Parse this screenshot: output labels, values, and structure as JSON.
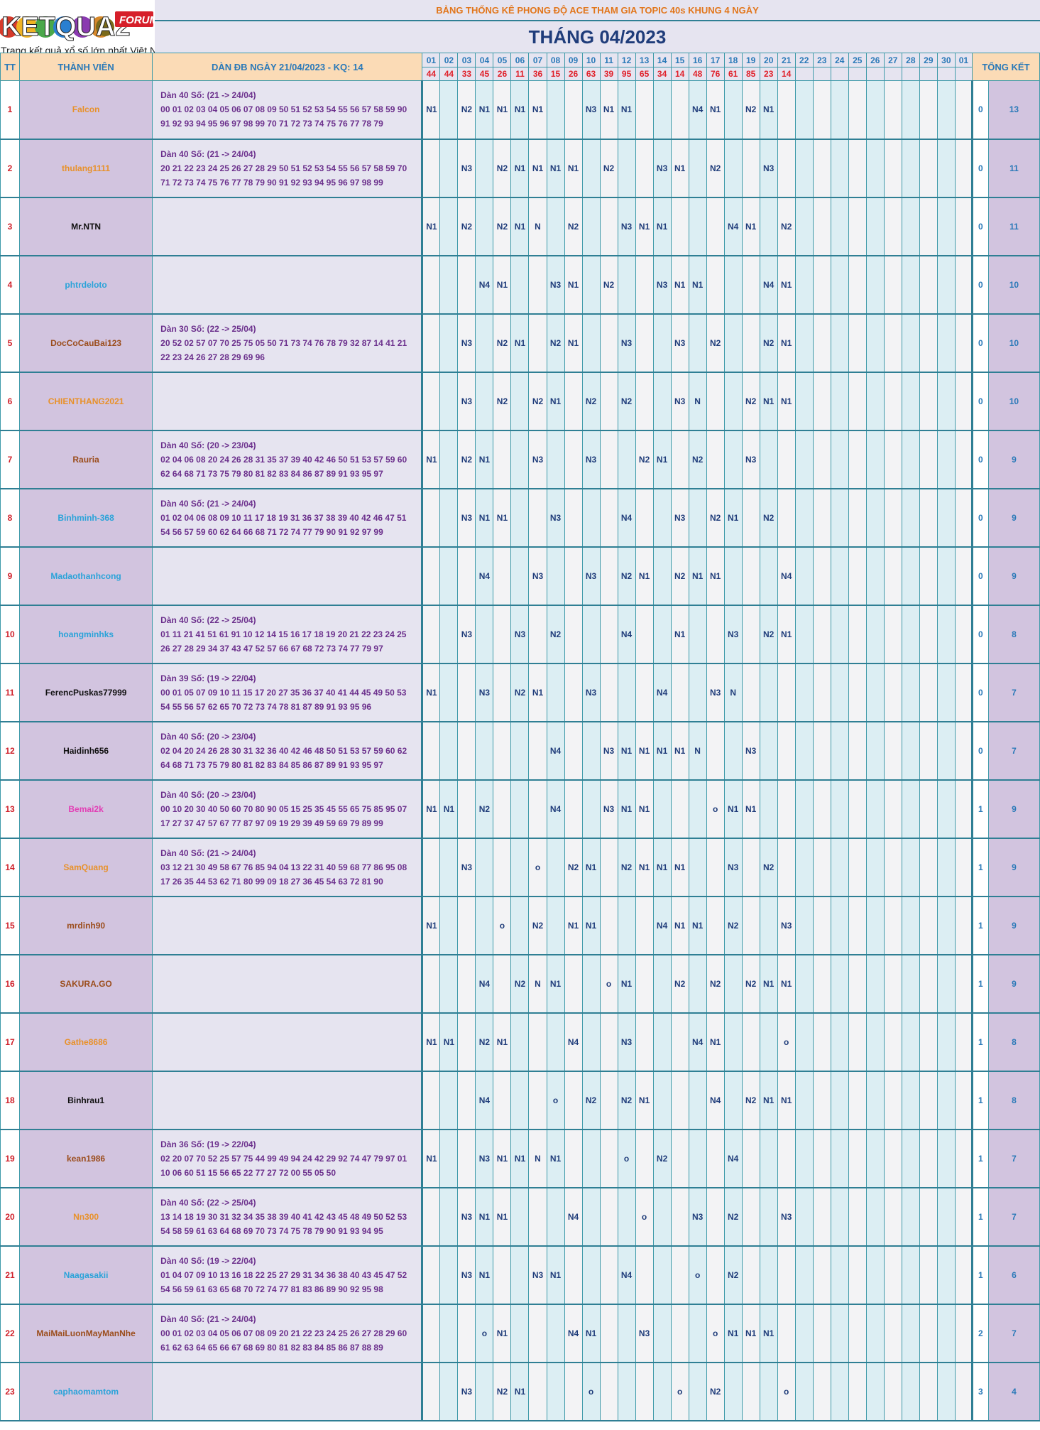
{
  "logo": {
    "text": "KETQUA2",
    "badge": "FORUM",
    "tagline": "Trang kết quả xổ số lớn nhất Việt Nam"
  },
  "banner": "BẢNG THỐNG KÊ PHONG ĐỘ ACE THAM GIA TOPIC 40s KHUNG 4 NGÀY",
  "month_title": "THÁNG 04/2023",
  "headers": {
    "tt": "TT",
    "member": "THÀNH VIÊN",
    "dan": "DÀN ĐB NGÀY 21/04/2023 - KQ: 14",
    "total": "TỔNG KẾT"
  },
  "days": [
    "01",
    "02",
    "03",
    "04",
    "05",
    "06",
    "07",
    "08",
    "09",
    "10",
    "11",
    "12",
    "13",
    "14",
    "15",
    "16",
    "17",
    "18",
    "19",
    "20",
    "21",
    "22",
    "23",
    "24",
    "25",
    "26",
    "27",
    "28",
    "29",
    "30",
    "01"
  ],
  "results": [
    "44",
    "44",
    "33",
    "45",
    "26",
    "11",
    "36",
    "15",
    "26",
    "63",
    "39",
    "95",
    "65",
    "34",
    "14",
    "48",
    "76",
    "61",
    "85",
    "23",
    "14",
    "",
    "",
    "",
    "",
    "",
    "",
    "",
    "",
    "",
    ""
  ],
  "colors": {
    "orange": "#e8912a",
    "black": "#111111",
    "blue": "#2aa3d9",
    "brown": "#9b4d1c",
    "pink": "#e23fb5"
  },
  "rows": [
    {
      "tt": "1",
      "name": "Falcon",
      "color": "orange",
      "dan_title": "Dàn 40 Số: (21 -> 24/04)",
      "dan_l1": "00 01 02 03 04 05 06 07 08 09 50 51 52 53 54 55 56 57 58 59 90",
      "dan_l2": "91 92 93 94 95 96 97 98 99 70 71 72 73 74 75 76 77 78 79",
      "marks": [
        "N1",
        "",
        "N2",
        "N1",
        "N1",
        "N1",
        "N1",
        "",
        "",
        "N3",
        "N1",
        "N1",
        "",
        "",
        "",
        "N4",
        "N1",
        "",
        "N2",
        "N1",
        "",
        "",
        "",
        "",
        "",
        "",
        "",
        "",
        "",
        "",
        ""
      ],
      "x": "0",
      "total": "13"
    },
    {
      "tt": "2",
      "name": "thulang1111",
      "color": "orange",
      "dan_title": "Dàn 40 Số: (21 -> 24/04)",
      "dan_l1": "20 21 22 23 24 25 26 27 28 29 50 51 52 53 54 55 56 57 58 59 70",
      "dan_l2": "71 72 73 74 75 76 77 78 79 90 91 92 93 94 95 96 97 98 99",
      "marks": [
        "",
        "",
        "N3",
        "",
        "N2",
        "N1",
        "N1",
        "N1",
        "N1",
        "",
        "N2",
        "",
        "",
        "N3",
        "N1",
        "",
        "N2",
        "",
        "",
        "N3",
        "",
        "",
        "",
        "",
        "",
        "",
        "",
        "",
        "",
        "",
        ""
      ],
      "x": "0",
      "total": "11"
    },
    {
      "tt": "3",
      "name": "Mr.NTN",
      "color": "black",
      "dan_title": "",
      "dan_l1": "",
      "dan_l2": "",
      "marks": [
        "N1",
        "",
        "N2",
        "",
        "N2",
        "N1",
        "N",
        "",
        "N2",
        "",
        "",
        "N3",
        "N1",
        "N1",
        "",
        "",
        "",
        "N4",
        "N1",
        "",
        "N2",
        "",
        "",
        "",
        "",
        "",
        "",
        "",
        "",
        "",
        ""
      ],
      "x": "0",
      "total": "11"
    },
    {
      "tt": "4",
      "name": "phtrdeloto",
      "color": "blue",
      "dan_title": "",
      "dan_l1": "",
      "dan_l2": "",
      "marks": [
        "",
        "",
        "",
        "N4",
        "N1",
        "",
        "",
        "N3",
        "N1",
        "",
        "N2",
        "",
        "",
        "N3",
        "N1",
        "N1",
        "",
        "",
        "",
        "N4",
        "N1",
        "",
        "",
        "",
        "",
        "",
        "",
        "",
        "",
        "",
        ""
      ],
      "x": "0",
      "total": "10"
    },
    {
      "tt": "5",
      "name": "DocCoCauBai123",
      "color": "brown",
      "dan_title": "Dàn 30 Số: (22 -> 25/04)",
      "dan_l1": "20 52 02 57 07 70 25 75 05 50 71 73 74 76 78 79 32 87 14 41 21",
      "dan_l2": "22 23 24 26 27 28 29 69 96",
      "marks": [
        "",
        "",
        "N3",
        "",
        "N2",
        "N1",
        "",
        "N2",
        "N1",
        "",
        "",
        "N3",
        "",
        "",
        "N3",
        "",
        "N2",
        "",
        "",
        "N2",
        "N1",
        "",
        "",
        "",
        "",
        "",
        "",
        "",
        "",
        "",
        ""
      ],
      "x": "0",
      "total": "10"
    },
    {
      "tt": "6",
      "name": "CHIENTHANG2021",
      "color": "orange",
      "dan_title": "",
      "dan_l1": "",
      "dan_l2": "",
      "marks": [
        "",
        "",
        "N3",
        "",
        "N2",
        "",
        "N2",
        "N1",
        "",
        "N2",
        "",
        "N2",
        "",
        "",
        "N3",
        "N",
        "",
        "",
        "N2",
        "N1",
        "N1",
        "",
        "",
        "",
        "",
        "",
        "",
        "",
        "",
        "",
        ""
      ],
      "x": "0",
      "total": "10"
    },
    {
      "tt": "7",
      "name": "Rauria",
      "color": "brown",
      "dan_title": "Dàn 40 Số: (20 -> 23/04)",
      "dan_l1": "02 04 06 08 20 24 26 28 31 35 37 39 40 42 46 50 51 53 57 59 60",
      "dan_l2": "62 64 68 71 73 75 79 80 81 82 83 84 86 87 89 91 93 95 97",
      "marks": [
        "N1",
        "",
        "N2",
        "N1",
        "",
        "",
        "N3",
        "",
        "",
        "N3",
        "",
        "",
        "N2",
        "N1",
        "",
        "N2",
        "",
        "",
        "N3",
        "",
        "",
        "",
        "",
        "",
        "",
        "",
        "",
        "",
        "",
        "",
        ""
      ],
      "x": "0",
      "total": "9"
    },
    {
      "tt": "8",
      "name": "Binhminh-368",
      "color": "blue",
      "dan_title": "Dàn 40 Số: (21 -> 24/04)",
      "dan_l1": "01 02 04 06 08 09 10 11 17 18 19 31 36 37 38 39 40 42 46 47 51",
      "dan_l2": "54 56 57 59 60 62 64 66 68 71 72 74 77 79 90 91 92 97 99",
      "marks": [
        "",
        "",
        "N3",
        "N1",
        "N1",
        "",
        "",
        "N3",
        "",
        "",
        "",
        "N4",
        "",
        "",
        "N3",
        "",
        "N2",
        "N1",
        "",
        "N2",
        "",
        "",
        "",
        "",
        "",
        "",
        "",
        "",
        "",
        "",
        ""
      ],
      "x": "0",
      "total": "9"
    },
    {
      "tt": "9",
      "name": "Madaothanhcong",
      "color": "blue",
      "dan_title": "",
      "dan_l1": "",
      "dan_l2": "",
      "marks": [
        "",
        "",
        "",
        "N4",
        "",
        "",
        "N3",
        "",
        "",
        "N3",
        "",
        "N2",
        "N1",
        "",
        "N2",
        "N1",
        "N1",
        "",
        "",
        "",
        "N4",
        "",
        "",
        "",
        "",
        "",
        "",
        "",
        "",
        "",
        ""
      ],
      "x": "0",
      "total": "9"
    },
    {
      "tt": "10",
      "name": "hoangminhks",
      "color": "blue",
      "dan_title": "Dàn 40 Số: (22 -> 25/04)",
      "dan_l1": "01 11 21 41 51 61 91 10 12 14 15 16 17 18 19 20 21 22 23 24 25",
      "dan_l2": "26 27 28 29 34 37 43 47 52 57 66 67 68 72 73 74 77 79 97",
      "marks": [
        "",
        "",
        "N3",
        "",
        "",
        "N3",
        "",
        "N2",
        "",
        "",
        "",
        "N4",
        "",
        "",
        "N1",
        "",
        "",
        "N3",
        "",
        "N2",
        "N1",
        "",
        "",
        "",
        "",
        "",
        "",
        "",
        "",
        "",
        ""
      ],
      "x": "0",
      "total": "8"
    },
    {
      "tt": "11",
      "name": "FerencPuskas77999",
      "color": "black",
      "dan_title": "Dàn 39 Số: (19 -> 22/04)",
      "dan_l1": "00 01 05 07 09 10 11 15 17 20 27 35 36 37 40 41 44 45 49 50 53",
      "dan_l2": "54 55 56 57 62 65 70 72 73 74 78 81 87 89 91 93 95 96",
      "marks": [
        "N1",
        "",
        "",
        "N3",
        "",
        "N2",
        "N1",
        "",
        "",
        "N3",
        "",
        "",
        "",
        "N4",
        "",
        "",
        "N3",
        "N",
        "",
        "",
        "",
        "",
        "",
        "",
        "",
        "",
        "",
        "",
        "",
        "",
        ""
      ],
      "x": "0",
      "total": "7"
    },
    {
      "tt": "12",
      "name": "Haidinh656",
      "color": "black",
      "dan_title": "Dàn 40 Số: (20 -> 23/04)",
      "dan_l1": "02 04 20 24 26 28 30 31 32 36 40 42 46 48 50 51 53 57 59 60 62",
      "dan_l2": "64 68 71 73 75 79 80 81 82 83 84 85 86 87 89 91 93 95 97",
      "marks": [
        "",
        "",
        "",
        "",
        "",
        "",
        "",
        "N4",
        "",
        "",
        "N3",
        "N1",
        "N1",
        "N1",
        "N1",
        "N",
        "",
        "",
        "N3",
        "",
        "",
        "",
        "",
        "",
        "",
        "",
        "",
        "",
        "",
        "",
        ""
      ],
      "x": "0",
      "total": "7"
    },
    {
      "tt": "13",
      "name": "Bemai2k",
      "color": "pink",
      "dan_title": "Dàn 40 Số: (20 -> 23/04)",
      "dan_l1": "00 10 20 30 40 50 60 70 80 90 05 15 25 35 45 55 65 75 85 95 07",
      "dan_l2": "17 27 37 47 57 67 77 87 97 09 19 29 39 49 59 69 79 89 99",
      "marks": [
        "N1",
        "N1",
        "",
        "N2",
        "",
        "",
        "",
        "N4",
        "",
        "",
        "N3",
        "N1",
        "N1",
        "",
        "",
        "",
        "o",
        "N1",
        "N1",
        "",
        "",
        "",
        "",
        "",
        "",
        "",
        "",
        "",
        "",
        "",
        ""
      ],
      "x": "1",
      "total": "9"
    },
    {
      "tt": "14",
      "name": "SamQuang",
      "color": "orange",
      "dan_title": "Dàn 40 Số: (21 -> 24/04)",
      "dan_l1": "03 12 21 30 49 58 67 76 85 94 04 13 22 31 40 59 68 77 86 95 08",
      "dan_l2": "17 26 35 44 53 62 71 80 99 09 18 27 36 45 54 63 72 81 90",
      "marks": [
        "",
        "",
        "N3",
        "",
        "",
        "",
        "o",
        "",
        "N2",
        "N1",
        "",
        "N2",
        "N1",
        "N1",
        "N1",
        "",
        "",
        "N3",
        "",
        "N2",
        "",
        "",
        "",
        "",
        "",
        "",
        "",
        "",
        "",
        "",
        ""
      ],
      "x": "1",
      "total": "9"
    },
    {
      "tt": "15",
      "name": "mrdinh90",
      "color": "brown",
      "dan_title": "",
      "dan_l1": "",
      "dan_l2": "",
      "marks": [
        "N1",
        "",
        "",
        "",
        "o",
        "",
        "N2",
        "",
        "N1",
        "N1",
        "",
        "",
        "",
        "N4",
        "N1",
        "N1",
        "",
        "N2",
        "",
        "",
        "N3",
        "",
        "",
        "",
        "",
        "",
        "",
        "",
        "",
        "",
        ""
      ],
      "x": "1",
      "total": "9"
    },
    {
      "tt": "16",
      "name": "SAKURA.GO",
      "color": "brown",
      "dan_title": "",
      "dan_l1": "",
      "dan_l2": "",
      "marks": [
        "",
        "",
        "",
        "N4",
        "",
        "N2",
        "N",
        "N1",
        "",
        "",
        "o",
        "N1",
        "",
        "",
        "N2",
        "",
        "N2",
        "",
        "N2",
        "N1",
        "N1",
        "",
        "",
        "",
        "",
        "",
        "",
        "",
        "",
        "",
        ""
      ],
      "x": "1",
      "total": "9"
    },
    {
      "tt": "17",
      "name": "Gathe8686",
      "color": "orange",
      "dan_title": "",
      "dan_l1": "",
      "dan_l2": "",
      "marks": [
        "N1",
        "N1",
        "",
        "N2",
        "N1",
        "",
        "",
        "",
        "N4",
        "",
        "",
        "N3",
        "",
        "",
        "",
        "N4",
        "N1",
        "",
        "",
        "",
        "o",
        "",
        "",
        "",
        "",
        "",
        "",
        "",
        "",
        "",
        ""
      ],
      "x": "1",
      "total": "8"
    },
    {
      "tt": "18",
      "name": "Binhrau1",
      "color": "black",
      "dan_title": "",
      "dan_l1": "",
      "dan_l2": "",
      "marks": [
        "",
        "",
        "",
        "N4",
        "",
        "",
        "",
        "o",
        "",
        "N2",
        "",
        "N2",
        "N1",
        "",
        "",
        "",
        "N4",
        "",
        "N2",
        "N1",
        "N1",
        "",
        "",
        "",
        "",
        "",
        "",
        "",
        "",
        "",
        ""
      ],
      "x": "1",
      "total": "8"
    },
    {
      "tt": "19",
      "name": "kean1986",
      "color": "brown",
      "dan_title": "Dàn 36 Số: (19 -> 22/04)",
      "dan_l1": "02 20 07 70 52 25 57 75 44 99 49 94 24 42 29 92 74 47 79 97 01",
      "dan_l2": "10 06 60 51 15 56 65 22 77 27 72 00 55 05 50",
      "marks": [
        "N1",
        "",
        "",
        "N3",
        "N1",
        "N1",
        "N",
        "N1",
        "",
        "",
        "",
        "o",
        "",
        "N2",
        "",
        "",
        "",
        "N4",
        "",
        "",
        "",
        "",
        "",
        "",
        "",
        "",
        "",
        "",
        "",
        "",
        ""
      ],
      "x": "1",
      "total": "7"
    },
    {
      "tt": "20",
      "name": "Nn300",
      "color": "orange",
      "dan_title": "Dàn 40 Số: (22 -> 25/04)",
      "dan_l1": "13 14 18 19 30 31 32 34 35 38 39 40 41 42 43 45 48 49 50 52 53",
      "dan_l2": "54 58 59 61 63 64 68 69 70 73 74 75 78 79 90 91 93 94 95",
      "marks": [
        "",
        "",
        "N3",
        "N1",
        "N1",
        "",
        "",
        "",
        "N4",
        "",
        "",
        "",
        "o",
        "",
        "",
        "N3",
        "",
        "N2",
        "",
        "",
        "N3",
        "",
        "",
        "",
        "",
        "",
        "",
        "",
        "",
        "",
        ""
      ],
      "x": "1",
      "total": "7"
    },
    {
      "tt": "21",
      "name": "Naagasakii",
      "color": "blue",
      "dan_title": "Dàn 40 Số: (19 -> 22/04)",
      "dan_l1": "01 04 07 09 10 13 16 18 22 25 27 29 31 34 36 38 40 43 45 47 52",
      "dan_l2": "54 56 59 61 63 65 68 70 72 74 77 81 83 86 89 90 92 95 98",
      "marks": [
        "",
        "",
        "N3",
        "N1",
        "",
        "",
        "N3",
        "N1",
        "",
        "",
        "",
        "N4",
        "",
        "",
        "",
        "o",
        "",
        "N2",
        "",
        "",
        "",
        "",
        "",
        "",
        "",
        "",
        "",
        "",
        "",
        "",
        ""
      ],
      "x": "1",
      "total": "6"
    },
    {
      "tt": "22",
      "name": "MaiMaiLuonMayManNhe",
      "color": "brown",
      "dan_title": "Dàn 40 Số: (21 -> 24/04)",
      "dan_l1": "00 01 02 03 04 05 06 07 08 09 20 21 22 23 24 25 26 27 28 29 60",
      "dan_l2": "61 62 63 64 65 66 67 68 69 80 81 82 83 84 85 86 87 88 89",
      "marks": [
        "",
        "",
        "",
        "o",
        "N1",
        "",
        "",
        "",
        "N4",
        "N1",
        "",
        "",
        "N3",
        "",
        "",
        "",
        "o",
        "N1",
        "N1",
        "N1",
        "",
        "",
        "",
        "",
        "",
        "",
        "",
        "",
        "",
        "",
        ""
      ],
      "x": "2",
      "total": "7"
    },
    {
      "tt": "23",
      "name": "caphaomamtom",
      "color": "blue",
      "dan_title": "",
      "dan_l1": "",
      "dan_l2": "",
      "marks": [
        "",
        "",
        "N3",
        "",
        "N2",
        "N1",
        "",
        "",
        "",
        "o",
        "",
        "",
        "",
        "",
        "o",
        "",
        "N2",
        "",
        "",
        "",
        "o",
        "",
        "",
        "",
        "",
        "",
        "",
        "",
        "",
        "",
        ""
      ],
      "x": "3",
      "total": "4"
    }
  ]
}
